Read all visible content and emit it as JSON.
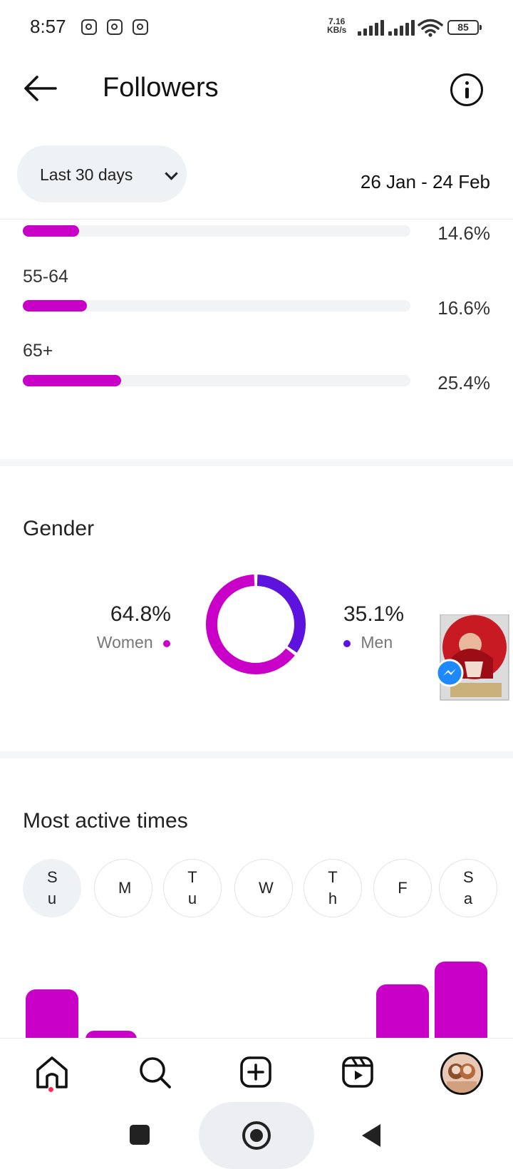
{
  "status_bar": {
    "time": "8:57",
    "net_speed_value": "7.16",
    "net_speed_unit": "KB/s",
    "battery": "85",
    "notification_icons": [
      "instagram-icon",
      "instagram-icon",
      "instagram-icon"
    ]
  },
  "header": {
    "title": "Followers",
    "back_icon": "arrow-left-icon",
    "info_icon": "info-icon"
  },
  "filter": {
    "period_label": "Last 30 days",
    "date_range": "26 Jan - 24 Feb"
  },
  "age_ranges": [
    {
      "label": "",
      "value": 14.6,
      "display": "14.6%"
    },
    {
      "label": "55-64",
      "value": 16.6,
      "display": "16.6%"
    },
    {
      "label": "65+",
      "value": 25.4,
      "display": "25.4%"
    }
  ],
  "gender": {
    "title": "Gender",
    "women": {
      "label": "Women",
      "value": 64.8,
      "display": "64.8%",
      "color": "#c800c8"
    },
    "men": {
      "label": "Men",
      "value": 35.1,
      "display": "35.1%",
      "color": "#5d12dd"
    }
  },
  "active_times": {
    "title": "Most active times",
    "days": [
      {
        "label": "Su",
        "selected": true
      },
      {
        "label": "M",
        "selected": false
      },
      {
        "label": "Tu",
        "selected": false
      },
      {
        "label": "W",
        "selected": false
      },
      {
        "label": "Th",
        "selected": false
      },
      {
        "label": "F",
        "selected": false
      },
      {
        "label": "Sa",
        "selected": false
      }
    ]
  },
  "bottom_nav": {
    "items": [
      "home-icon",
      "search-icon",
      "create-icon",
      "reels-icon",
      "profile-avatar"
    ]
  },
  "colors": {
    "accent": "#c800c8",
    "secondary": "#5d12dd",
    "track": "#f2f3f5"
  }
}
